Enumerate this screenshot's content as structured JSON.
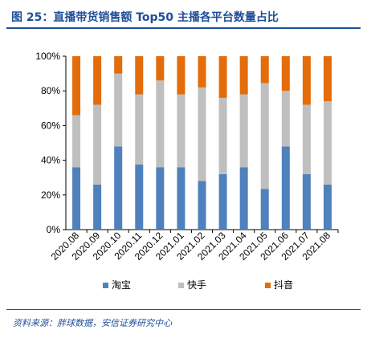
{
  "header": {
    "title": "图 25：直播带货销售额 Top50 主播各平台数量占比"
  },
  "source": {
    "text": "资料来源：胖球数据，安信证券研究中心"
  },
  "chart_data": {
    "type": "bar",
    "stacked": true,
    "categories": [
      "2020.08",
      "2020.09",
      "2020.10",
      "2020.11",
      "2020.12",
      "2021.01",
      "2021.02",
      "2021.03",
      "2021.04",
      "2021.05",
      "2021.06",
      "2021.07",
      "2021.08"
    ],
    "series": [
      {
        "name": "淘宝",
        "color": "#4f81bd",
        "values": [
          36,
          26,
          48,
          37.5,
          36,
          36,
          28,
          32,
          36,
          23.5,
          48,
          32,
          26
        ]
      },
      {
        "name": "快手",
        "color": "#bfbfbf",
        "values": [
          30,
          46,
          42,
          40.5,
          50,
          42,
          54,
          44,
          42,
          61,
          32,
          40,
          48
        ]
      },
      {
        "name": "抖音",
        "color": "#e46c0a",
        "values": [
          34,
          28,
          10,
          22,
          14,
          22,
          18,
          24,
          22,
          15.5,
          20,
          28,
          26
        ]
      }
    ],
    "yticks": [
      "0%",
      "20%",
      "40%",
      "60%",
      "80%",
      "100%"
    ],
    "ylim": [
      0,
      100
    ],
    "legend_position": "bottom",
    "grid": false
  }
}
